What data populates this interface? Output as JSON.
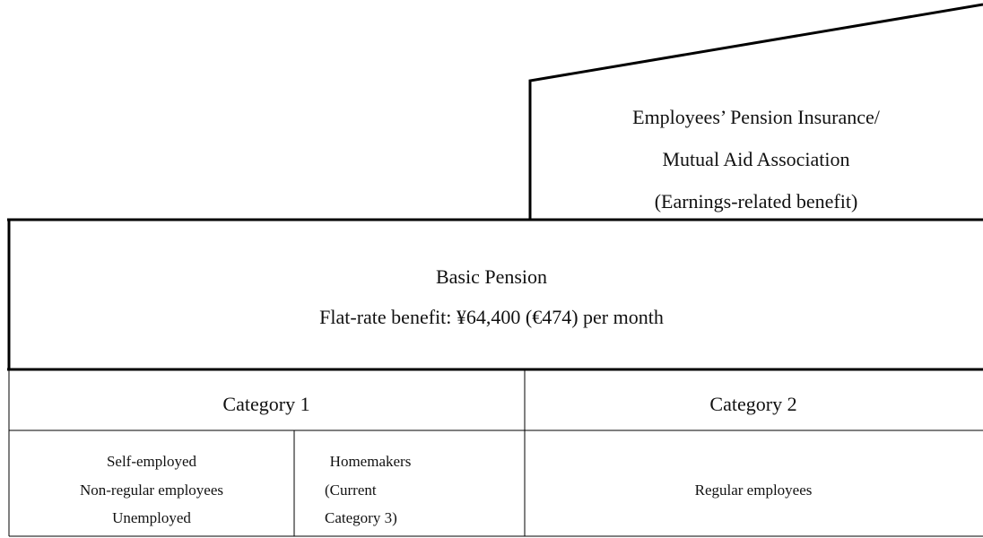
{
  "upper_box": {
    "lines": [
      "Employees’ Pension Insurance/",
      "Mutual Aid Association",
      "(Earnings-related benefit)"
    ]
  },
  "basic_pension": {
    "title": "Basic Pension",
    "benefit": "Flat-rate benefit: ¥64,400 (€474) per month"
  },
  "categories": [
    {
      "name": "Category 1",
      "groups": [
        {
          "lines": [
            "Self-employed",
            "Non-regular employees",
            "Unemployed"
          ]
        },
        {
          "lines": [
            "Homemakers",
            "(Current",
            "Category 3)"
          ]
        }
      ]
    },
    {
      "name": "Category 2",
      "groups": [
        {
          "lines": [
            "Regular employees"
          ]
        }
      ]
    }
  ]
}
